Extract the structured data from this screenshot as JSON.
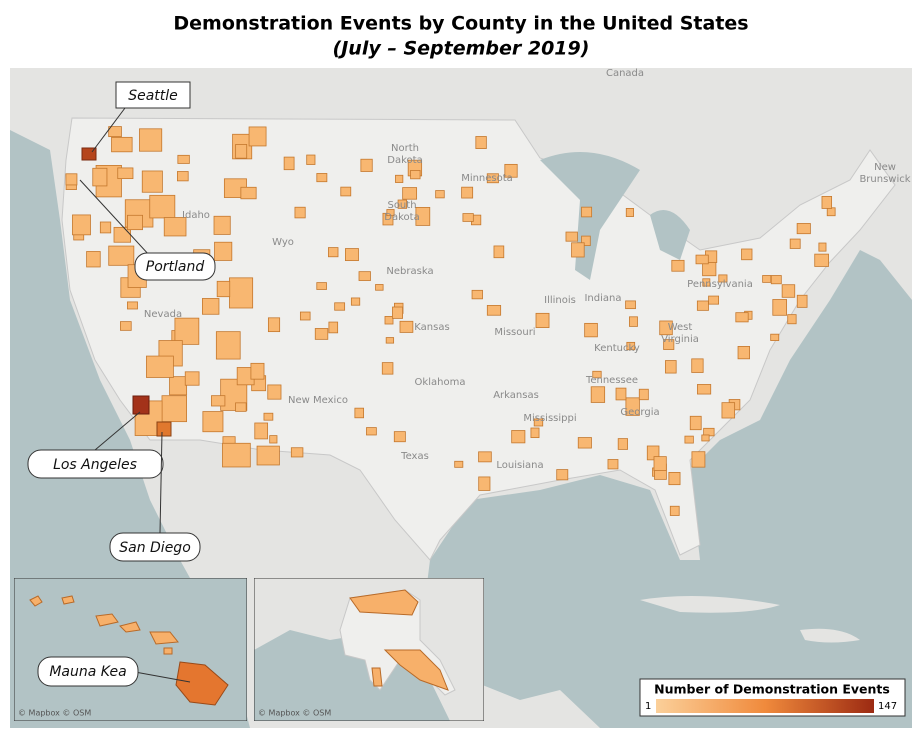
{
  "title": "Demonstration Events by County in the United States",
  "subtitle": "(July – September 2019)",
  "callouts": [
    "Seattle",
    "Portland",
    "Los Angeles",
    "San Diego",
    "Mauna Kea"
  ],
  "map_labels": [
    {
      "lines": [
        "Canada"
      ]
    },
    {
      "lines": [
        "North",
        "Dakota"
      ]
    },
    {
      "lines": [
        "South",
        "Dakota"
      ]
    },
    {
      "lines": [
        "Minnesota"
      ]
    },
    {
      "lines": [
        "Nebraska"
      ]
    },
    {
      "lines": [
        "Kansas"
      ]
    },
    {
      "lines": [
        "Oklahoma"
      ]
    },
    {
      "lines": [
        "Texas"
      ]
    },
    {
      "lines": [
        "Idaho"
      ]
    },
    {
      "lines": [
        "Nevada"
      ]
    },
    {
      "lines": [
        "Wyo"
      ]
    },
    {
      "lines": [
        "New Mexico"
      ]
    },
    {
      "lines": [
        "Missouri"
      ]
    },
    {
      "lines": [
        "Illinois"
      ]
    },
    {
      "lines": [
        "Indiana"
      ]
    },
    {
      "lines": [
        "Kentucky"
      ]
    },
    {
      "lines": [
        "Tennessee"
      ]
    },
    {
      "lines": [
        "Arkansas"
      ]
    },
    {
      "lines": [
        "Mississippi"
      ]
    },
    {
      "lines": [
        "Louisiana"
      ]
    },
    {
      "lines": [
        "Georgia"
      ]
    },
    {
      "lines": [
        "West",
        "Virginia"
      ]
    },
    {
      "lines": [
        "Pennsylvania"
      ]
    },
    {
      "lines": [
        "New",
        "Brunswick"
      ]
    }
  ],
  "attribution": [
    "© Mapbox © OSM",
    "© Mapbox © OSM"
  ],
  "legend": {
    "title": "Number of Demonstration Events",
    "min": 1,
    "max": 147,
    "colors": [
      "#fbd09a",
      "#f08a3c",
      "#9c2a12"
    ]
  }
}
